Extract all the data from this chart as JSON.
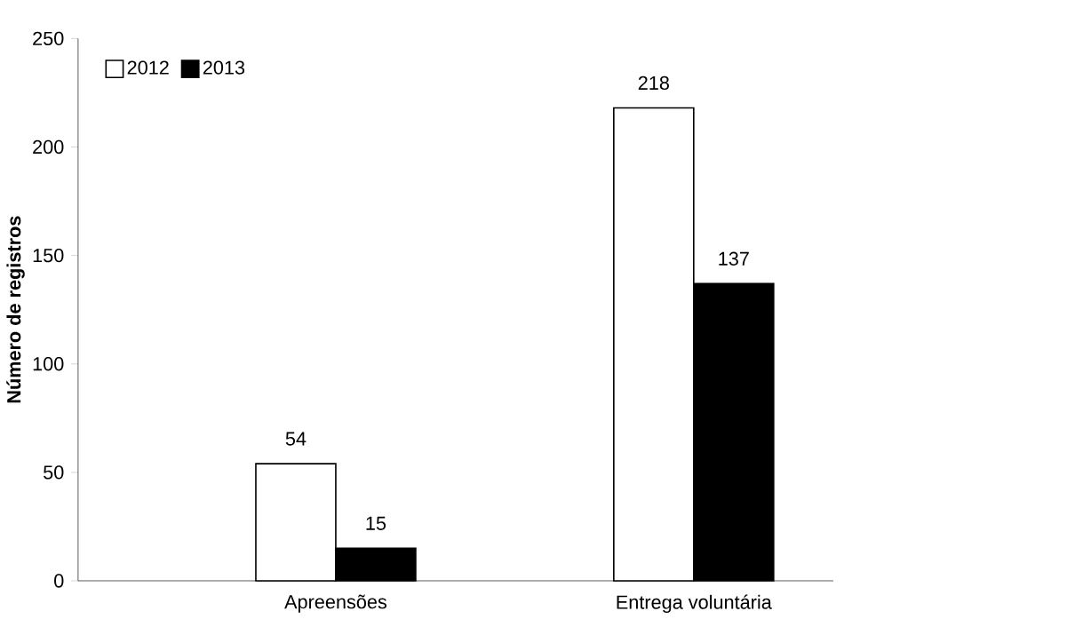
{
  "chart_data": {
    "type": "bar",
    "ylabel": "Número de registros",
    "categories": [
      "Apreensões",
      "Entrega voluntária"
    ],
    "series": [
      {
        "name": "2012",
        "color": "#ffffff",
        "values": [
          54,
          218
        ]
      },
      {
        "name": "2013",
        "color": "#000000",
        "values": [
          15,
          137
        ]
      }
    ],
    "ylim": [
      0,
      250
    ],
    "yticks": [
      0,
      50,
      100,
      150,
      200,
      250
    ],
    "data_labels": true,
    "legend": "top left",
    "grid": false
  }
}
